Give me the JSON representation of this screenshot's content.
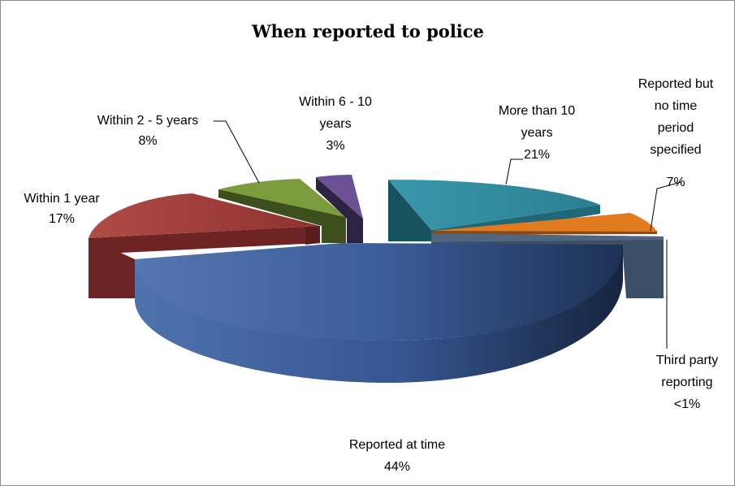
{
  "chart_data": {
    "type": "pie",
    "title": "When reported to police",
    "style": "3d-exploded",
    "legend": "none",
    "slices": [
      {
        "label": "Reported at time",
        "value": 44,
        "value_label": "44%",
        "color": "#3f63a1"
      },
      {
        "label": "Within 1 year",
        "value": 17,
        "value_label": "17%",
        "color": "#9c3b39"
      },
      {
        "label": "Within 2 - 5 years",
        "value": 8,
        "value_label": "8%",
        "color": "#7a9a3c"
      },
      {
        "label": "Within 6 - 10 years",
        "value": 3,
        "value_label": "3%",
        "color": "#6a4f93"
      },
      {
        "label": "More than 10 years",
        "value": 21,
        "value_label": "21%",
        "color": "#2f8a9e"
      },
      {
        "label": "Reported but no time period specified",
        "value": 7,
        "value_label": "7%",
        "color": "#e07b20"
      },
      {
        "label": "Third party reporting",
        "value": 0.5,
        "value_label": "<1%",
        "color": "#4f6580"
      }
    ]
  }
}
